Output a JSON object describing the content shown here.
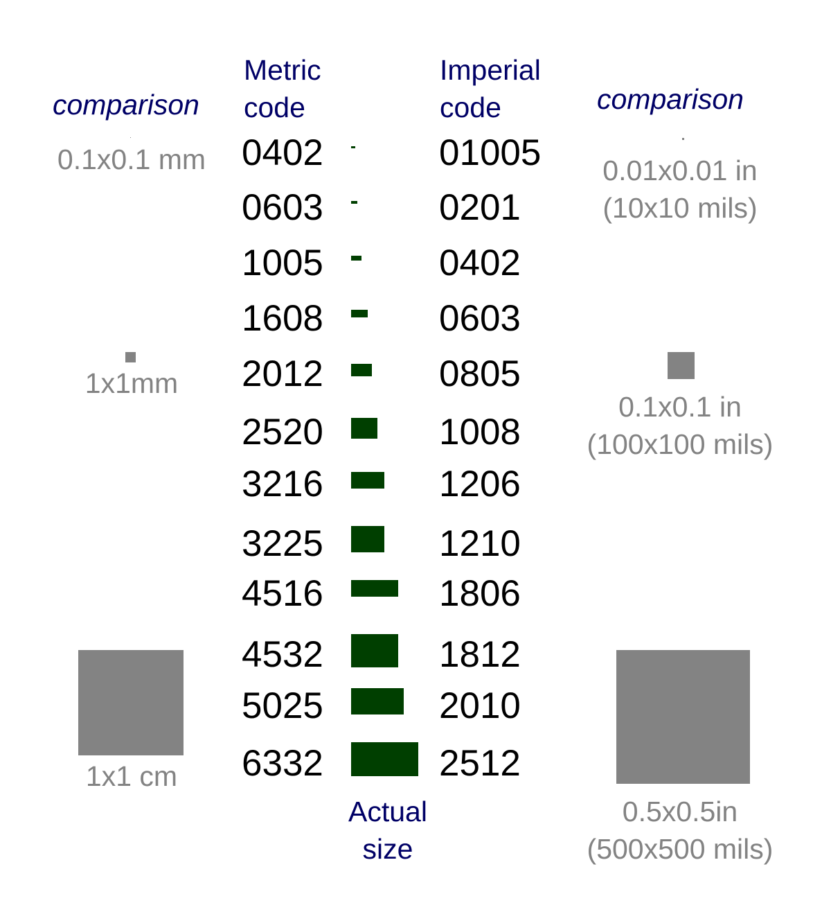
{
  "headers": {
    "left_comparison": "comparison",
    "metric": [
      "Metric",
      "code"
    ],
    "imperial": [
      "Imperial",
      "code"
    ],
    "right_comparison": "comparison",
    "actual_size": [
      "Actual",
      "size"
    ]
  },
  "rows": [
    {
      "metric": "0402",
      "imperial": "01005"
    },
    {
      "metric": "0603",
      "imperial": "0201"
    },
    {
      "metric": "1005",
      "imperial": "0402"
    },
    {
      "metric": "1608",
      "imperial": "0603"
    },
    {
      "metric": "2012",
      "imperial": "0805"
    },
    {
      "metric": "2520",
      "imperial": "1008"
    },
    {
      "metric": "3216",
      "imperial": "1206"
    },
    {
      "metric": "3225",
      "imperial": "1210"
    },
    {
      "metric": "4516",
      "imperial": "1806"
    },
    {
      "metric": "4532",
      "imperial": "1812"
    },
    {
      "metric": "5025",
      "imperial": "2010"
    },
    {
      "metric": "6332",
      "imperial": "2512"
    }
  ],
  "left_comparisons": [
    {
      "label": "0.1x0.1 mm"
    },
    {
      "label": "1x1mm"
    },
    {
      "label": "1x1 cm"
    }
  ],
  "right_comparisons": [
    {
      "label": [
        "0.01x0.01 in",
        "(10x10 mils)"
      ]
    },
    {
      "label": [
        "0.1x0.1 in",
        "(100x100 mils)"
      ]
    },
    {
      "label": [
        "0.5x0.5in",
        "(500x500 mils)"
      ]
    }
  ],
  "colors": {
    "header": "#000066",
    "code": "#000000",
    "component": "#003f00",
    "comparison": "#838383"
  }
}
